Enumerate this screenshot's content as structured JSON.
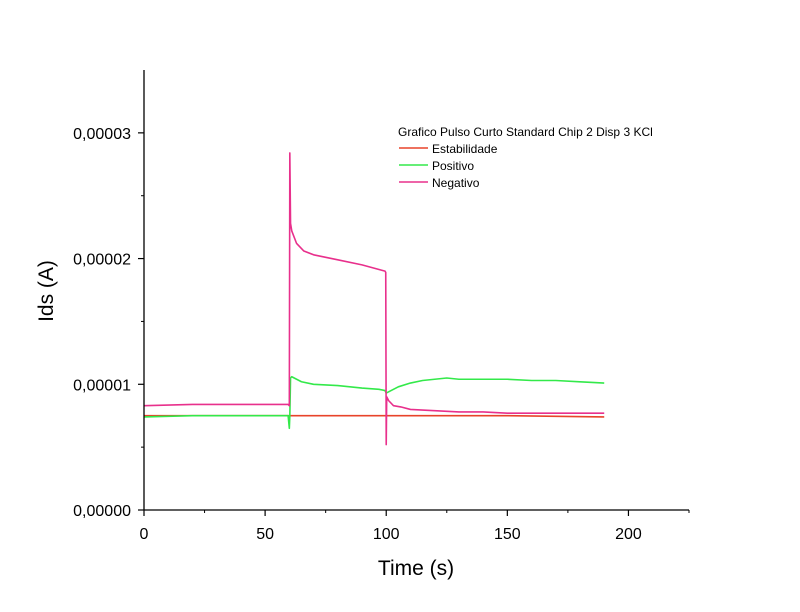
{
  "chart_data": {
    "type": "line",
    "xlabel": "Time (s)",
    "ylabel": "Ids (A)",
    "xlim": [
      0,
      225
    ],
    "ylim": [
      0,
      3.5e-05
    ],
    "x_ticks": [
      0,
      50,
      100,
      150,
      200
    ],
    "x_tick_labels": [
      "0",
      "50",
      "100",
      "150",
      "200"
    ],
    "y_ticks": [
      0,
      1e-05,
      2e-05,
      3e-05
    ],
    "y_tick_labels": [
      "0,00000",
      "0,00001",
      "0,00002",
      "0,00003"
    ],
    "grid": false,
    "legend": {
      "title": "Grafico Pulso Curto Standard Chip 2 Disp 3 KCl",
      "placement": "top-right"
    },
    "series": [
      {
        "name": "Estabilidade",
        "color": "#e8432a",
        "x": [
          0,
          60,
          100,
          150,
          190
        ],
        "y": [
          7.5e-06,
          7.5e-06,
          7.5e-06,
          7.5e-06,
          7.4e-06
        ]
      },
      {
        "name": "Positivo",
        "color": "#33e94a",
        "x": [
          0,
          20,
          40,
          59.5,
          60,
          60.2,
          60.5,
          61,
          65,
          70,
          80,
          90,
          97,
          99.5,
          100,
          102,
          105,
          110,
          115,
          120,
          125,
          130,
          140,
          150,
          160,
          170,
          180,
          190
        ],
        "y": [
          7.4e-06,
          7.5e-06,
          7.5e-06,
          7.5e-06,
          6.5e-06,
          7.5e-06,
          1.05e-05,
          1.06e-05,
          1.02e-05,
          1e-05,
          9.9e-06,
          9.7e-06,
          9.6e-06,
          9.5e-06,
          9.3e-06,
          9.5e-06,
          9.8e-06,
          1.01e-05,
          1.03e-05,
          1.04e-05,
          1.05e-05,
          1.04e-05,
          1.04e-05,
          1.04e-05,
          1.03e-05,
          1.03e-05,
          1.02e-05,
          1.01e-05
        ]
      },
      {
        "name": "Negativo",
        "color": "#e8308c",
        "x": [
          0,
          20,
          40,
          59.5,
          60,
          60.2,
          60.5,
          61,
          63,
          66,
          70,
          80,
          90,
          99.5,
          99.8,
          100,
          100.2,
          101,
          103,
          106,
          110,
          120,
          130,
          140,
          150,
          160,
          170,
          180,
          190
        ],
        "y": [
          8.3e-06,
          8.4e-06,
          8.4e-06,
          8.4e-06,
          8.3e-06,
          2.84e-05,
          2.28e-05,
          2.22e-05,
          2.12e-05,
          2.06e-05,
          2.03e-05,
          1.99e-05,
          1.95e-05,
          1.9e-05,
          1.89e-05,
          5.2e-06,
          9e-06,
          8.7e-06,
          8.3e-06,
          8.2e-06,
          8e-06,
          7.9e-06,
          7.8e-06,
          7.8e-06,
          7.7e-06,
          7.7e-06,
          7.7e-06,
          7.7e-06,
          7.7e-06
        ]
      }
    ]
  }
}
